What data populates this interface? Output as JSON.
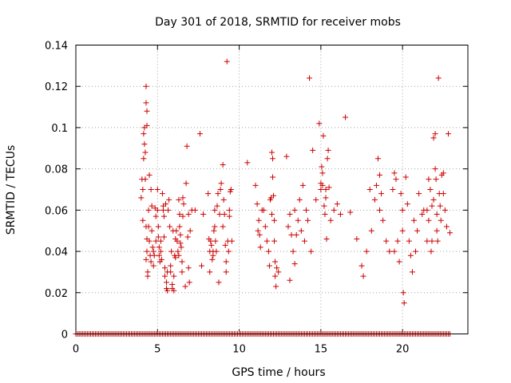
{
  "chart_data": {
    "type": "scatter",
    "title": "Day 301 of 2018, SRMTID for receiver mobs",
    "xlabel": "GPS time / hours",
    "ylabel": "SRMTID / TECUs",
    "xlim": [
      0,
      24
    ],
    "ylim": [
      0,
      0.14
    ],
    "x_ticks": [
      0,
      5,
      10,
      15,
      20
    ],
    "x_tick_labels": [
      "0",
      "5",
      "10",
      "15",
      "20"
    ],
    "y_ticks": [
      0,
      0.02,
      0.04,
      0.06,
      0.08,
      0.1,
      0.12,
      0.14
    ],
    "y_tick_labels": [
      "0",
      "0.02",
      "0.04",
      "0.06",
      "0.08",
      "0.1",
      "0.12",
      "0.14"
    ],
    "grid": true,
    "marker": "+",
    "color": "#cc0000",
    "baseline_points": {
      "y": 0,
      "x_start": 0.0,
      "x_end": 22.9,
      "step": 0.1
    },
    "series": [
      {
        "name": "SRMTID",
        "points": [
          [
            4.0,
            0.066
          ],
          [
            4.05,
            0.075
          ],
          [
            4.1,
            0.055
          ],
          [
            4.1,
            0.07
          ],
          [
            4.15,
            0.085
          ],
          [
            4.15,
            0.097
          ],
          [
            4.2,
            0.1
          ],
          [
            4.2,
            0.092
          ],
          [
            4.25,
            0.088
          ],
          [
            4.25,
            0.075
          ],
          [
            4.3,
            0.12
          ],
          [
            4.3,
            0.112
          ],
          [
            4.35,
            0.108
          ],
          [
            4.35,
            0.101
          ],
          [
            4.3,
            0.052
          ],
          [
            4.35,
            0.046
          ],
          [
            4.35,
            0.04
          ],
          [
            4.3,
            0.036
          ],
          [
            4.4,
            0.03
          ],
          [
            4.4,
            0.028
          ],
          [
            4.45,
            0.052
          ],
          [
            4.45,
            0.06
          ],
          [
            4.5,
            0.077
          ],
          [
            4.5,
            0.045
          ],
          [
            4.55,
            0.038
          ],
          [
            4.6,
            0.035
          ],
          [
            4.6,
            0.07
          ],
          [
            4.65,
            0.062
          ],
          [
            4.65,
            0.05
          ],
          [
            4.7,
            0.042
          ],
          [
            4.75,
            0.033
          ],
          [
            4.75,
            0.04
          ],
          [
            4.8,
            0.038
          ],
          [
            4.85,
            0.061
          ],
          [
            4.9,
            0.057
          ],
          [
            4.9,
            0.045
          ],
          [
            5.0,
            0.07
          ],
          [
            5.0,
            0.06
          ],
          [
            5.05,
            0.052
          ],
          [
            5.05,
            0.047
          ],
          [
            5.1,
            0.042
          ],
          [
            5.1,
            0.038
          ],
          [
            5.15,
            0.035
          ],
          [
            5.2,
            0.045
          ],
          [
            5.2,
            0.04
          ],
          [
            5.25,
            0.036
          ],
          [
            5.3,
            0.068
          ],
          [
            5.35,
            0.06
          ],
          [
            5.35,
            0.062
          ],
          [
            5.4,
            0.057
          ],
          [
            5.4,
            0.047
          ],
          [
            5.45,
            0.032
          ],
          [
            5.45,
            0.028
          ],
          [
            5.5,
            0.063
          ],
          [
            5.55,
            0.022
          ],
          [
            5.55,
            0.025
          ],
          [
            5.6,
            0.021
          ],
          [
            5.6,
            0.03
          ],
          [
            5.65,
            0.06
          ],
          [
            5.7,
            0.065
          ],
          [
            5.75,
            0.052
          ],
          [
            5.8,
            0.03
          ],
          [
            5.8,
            0.033
          ],
          [
            5.85,
            0.04
          ],
          [
            5.9,
            0.022
          ],
          [
            5.9,
            0.024
          ],
          [
            5.95,
            0.05
          ],
          [
            6.0,
            0.021
          ],
          [
            6.0,
            0.028
          ],
          [
            6.05,
            0.038
          ],
          [
            6.1,
            0.046
          ],
          [
            6.1,
            0.037
          ],
          [
            6.15,
            0.05
          ],
          [
            6.2,
            0.045
          ],
          [
            6.25,
            0.04
          ],
          [
            6.3,
            0.038
          ],
          [
            6.3,
            0.065
          ],
          [
            6.35,
            0.058
          ],
          [
            6.35,
            0.052
          ],
          [
            6.4,
            0.048
          ],
          [
            6.4,
            0.044
          ],
          [
            6.45,
            0.042
          ],
          [
            6.5,
            0.035
          ],
          [
            6.5,
            0.03
          ],
          [
            6.55,
            0.057
          ],
          [
            6.55,
            0.066
          ],
          [
            6.6,
            0.063
          ],
          [
            6.7,
            0.023
          ],
          [
            6.75,
            0.073
          ],
          [
            6.8,
            0.091
          ],
          [
            6.85,
            0.047
          ],
          [
            6.9,
            0.032
          ],
          [
            6.9,
            0.058
          ],
          [
            6.95,
            0.025
          ],
          [
            7.0,
            0.05
          ],
          [
            7.1,
            0.06
          ],
          [
            7.3,
            0.06
          ],
          [
            7.6,
            0.097
          ],
          [
            7.7,
            0.033
          ],
          [
            7.8,
            0.058
          ],
          [
            8.1,
            0.068
          ],
          [
            8.15,
            0.046
          ],
          [
            8.2,
            0.04
          ],
          [
            8.2,
            0.03
          ],
          [
            8.25,
            0.045
          ],
          [
            8.3,
            0.043
          ],
          [
            8.35,
            0.036
          ],
          [
            8.4,
            0.038
          ],
          [
            8.4,
            0.04
          ],
          [
            8.45,
            0.05
          ],
          [
            8.5,
            0.06
          ],
          [
            8.5,
            0.052
          ],
          [
            8.55,
            0.045
          ],
          [
            8.6,
            0.04
          ],
          [
            8.65,
            0.062
          ],
          [
            8.7,
            0.068
          ],
          [
            8.75,
            0.025
          ],
          [
            8.8,
            0.058
          ],
          [
            8.85,
            0.07
          ],
          [
            8.9,
            0.073
          ],
          [
            9.0,
            0.082
          ],
          [
            9.0,
            0.052
          ],
          [
            9.05,
            0.065
          ],
          [
            9.1,
            0.058
          ],
          [
            9.15,
            0.043
          ],
          [
            9.2,
            0.03
          ],
          [
            9.2,
            0.035
          ],
          [
            9.25,
            0.132
          ],
          [
            9.3,
            0.045
          ],
          [
            9.35,
            0.04
          ],
          [
            9.4,
            0.057
          ],
          [
            9.4,
            0.06
          ],
          [
            9.45,
            0.069
          ],
          [
            9.5,
            0.07
          ],
          [
            9.55,
            0.045
          ],
          [
            10.5,
            0.083
          ],
          [
            11.0,
            0.072
          ],
          [
            11.1,
            0.063
          ],
          [
            11.15,
            0.05
          ],
          [
            11.2,
            0.055
          ],
          [
            11.25,
            0.048
          ],
          [
            11.3,
            0.042
          ],
          [
            11.4,
            0.06
          ],
          [
            11.5,
            0.06
          ],
          [
            11.6,
            0.052
          ],
          [
            11.7,
            0.045
          ],
          [
            11.8,
            0.04
          ],
          [
            11.85,
            0.033
          ],
          [
            11.9,
            0.065
          ],
          [
            11.95,
            0.066
          ],
          [
            12.0,
            0.058
          ],
          [
            12.0,
            0.088
          ],
          [
            12.05,
            0.085
          ],
          [
            12.05,
            0.076
          ],
          [
            12.1,
            0.067
          ],
          [
            12.15,
            0.055
          ],
          [
            12.15,
            0.045
          ],
          [
            12.2,
            0.035
          ],
          [
            12.2,
            0.028
          ],
          [
            12.25,
            0.023
          ],
          [
            12.3,
            0.032
          ],
          [
            12.4,
            0.03
          ],
          [
            12.9,
            0.086
          ],
          [
            13.0,
            0.052
          ],
          [
            13.1,
            0.058
          ],
          [
            13.1,
            0.026
          ],
          [
            13.2,
            0.048
          ],
          [
            13.3,
            0.04
          ],
          [
            13.4,
            0.06
          ],
          [
            13.4,
            0.034
          ],
          [
            13.5,
            0.048
          ],
          [
            13.6,
            0.055
          ],
          [
            13.7,
            0.065
          ],
          [
            13.8,
            0.05
          ],
          [
            13.9,
            0.072
          ],
          [
            14.0,
            0.045
          ],
          [
            14.1,
            0.06
          ],
          [
            14.2,
            0.055
          ],
          [
            14.3,
            0.124
          ],
          [
            14.4,
            0.04
          ],
          [
            14.5,
            0.089
          ],
          [
            14.7,
            0.065
          ],
          [
            14.9,
            0.102
          ],
          [
            15.0,
            0.073
          ],
          [
            15.0,
            0.07
          ],
          [
            15.05,
            0.081
          ],
          [
            15.1,
            0.078
          ],
          [
            15.1,
            0.072
          ],
          [
            15.15,
            0.096
          ],
          [
            15.2,
            0.062
          ],
          [
            15.25,
            0.058
          ],
          [
            15.3,
            0.066
          ],
          [
            15.3,
            0.07
          ],
          [
            15.35,
            0.046
          ],
          [
            15.4,
            0.085
          ],
          [
            15.45,
            0.089
          ],
          [
            15.5,
            0.071
          ],
          [
            15.6,
            0.055
          ],
          [
            15.8,
            0.06
          ],
          [
            16.0,
            0.063
          ],
          [
            16.2,
            0.058
          ],
          [
            16.5,
            0.105
          ],
          [
            16.8,
            0.059
          ],
          [
            17.2,
            0.046
          ],
          [
            17.5,
            0.033
          ],
          [
            17.6,
            0.028
          ],
          [
            17.8,
            0.04
          ],
          [
            18.0,
            0.07
          ],
          [
            18.1,
            0.05
          ],
          [
            18.3,
            0.065
          ],
          [
            18.4,
            0.072
          ],
          [
            18.5,
            0.085
          ],
          [
            18.6,
            0.077
          ],
          [
            18.6,
            0.06
          ],
          [
            18.7,
            0.068
          ],
          [
            18.8,
            0.055
          ],
          [
            19.0,
            0.045
          ],
          [
            19.2,
            0.04
          ],
          [
            19.4,
            0.07
          ],
          [
            19.5,
            0.078
          ],
          [
            19.5,
            0.04
          ],
          [
            19.6,
            0.075
          ],
          [
            19.7,
            0.045
          ],
          [
            19.8,
            0.035
          ],
          [
            19.9,
            0.068
          ],
          [
            20.0,
            0.06
          ],
          [
            20.0,
            0.05
          ],
          [
            20.05,
            0.02
          ],
          [
            20.1,
            0.015
          ],
          [
            20.2,
            0.076
          ],
          [
            20.3,
            0.063
          ],
          [
            20.4,
            0.045
          ],
          [
            20.5,
            0.038
          ],
          [
            20.6,
            0.03
          ],
          [
            20.7,
            0.055
          ],
          [
            20.8,
            0.04
          ],
          [
            20.9,
            0.05
          ],
          [
            21.0,
            0.068
          ],
          [
            21.2,
            0.058
          ],
          [
            21.3,
            0.06
          ],
          [
            21.5,
            0.045
          ],
          [
            21.5,
            0.06
          ],
          [
            21.6,
            0.055
          ],
          [
            21.6,
            0.075
          ],
          [
            21.7,
            0.07
          ],
          [
            21.75,
            0.04
          ],
          [
            21.8,
            0.045
          ],
          [
            21.8,
            0.062
          ],
          [
            21.9,
            0.095
          ],
          [
            21.9,
            0.065
          ],
          [
            22.0,
            0.097
          ],
          [
            22.0,
            0.08
          ],
          [
            22.05,
            0.075
          ],
          [
            22.1,
            0.058
          ],
          [
            22.1,
            0.05
          ],
          [
            22.15,
            0.045
          ],
          [
            22.2,
            0.124
          ],
          [
            22.25,
            0.068
          ],
          [
            22.3,
            0.062
          ],
          [
            22.35,
            0.055
          ],
          [
            22.4,
            0.077
          ],
          [
            22.5,
            0.078
          ],
          [
            22.5,
            0.068
          ],
          [
            22.6,
            0.06
          ],
          [
            22.7,
            0.052
          ],
          [
            22.8,
            0.097
          ],
          [
            22.9,
            0.049
          ]
        ]
      }
    ]
  }
}
